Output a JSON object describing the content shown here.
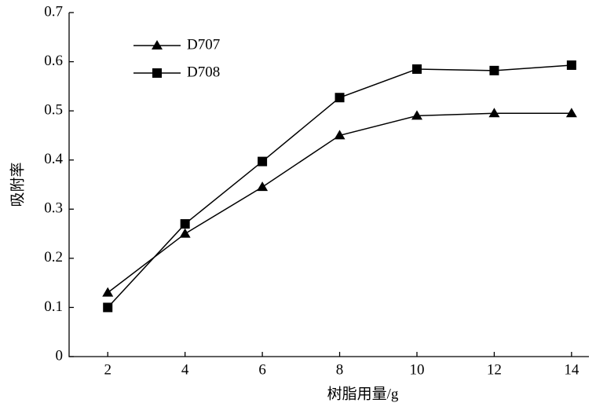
{
  "chart_data": {
    "type": "line",
    "x_label": "树脂用量/g",
    "y_label": "吸附率",
    "x": [
      2,
      4,
      6,
      8,
      10,
      12,
      14
    ],
    "series": [
      {
        "name": "D707",
        "color": "#000000",
        "marker": "triangle",
        "values": [
          0.13,
          0.25,
          0.345,
          0.45,
          0.49,
          0.495,
          0.495
        ]
      },
      {
        "name": "D708",
        "color": "#000000",
        "marker": "square",
        "values": [
          0.1,
          0.27,
          0.397,
          0.527,
          0.585,
          0.582,
          0.593
        ]
      }
    ],
    "xlim": [
      1,
      14.45
    ],
    "xticks": [
      2,
      4,
      6,
      8,
      10,
      12,
      14
    ],
    "ylim": [
      0,
      0.7
    ],
    "yticks": [
      0,
      0.1,
      0.2,
      0.3,
      0.4,
      0.5,
      0.6,
      0.7
    ],
    "grid": false,
    "legend": "upper left"
  }
}
